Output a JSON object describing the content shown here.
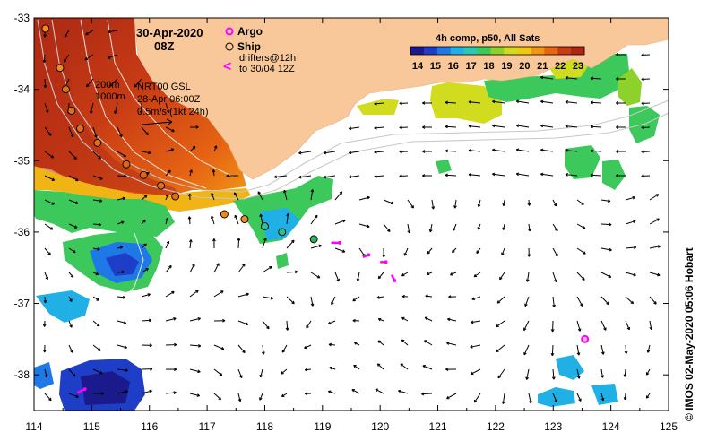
{
  "header": {
    "date": "30-Apr-2020",
    "time": "08Z",
    "legend_argo": "Argo",
    "legend_ship": "Ship",
    "drifters_line1": "drifters@12h",
    "drifters_line2": "to 30/04 12Z",
    "contour_200": "200m",
    "contour_1000": "1000m",
    "model_line1": "NRT00 GSL",
    "model_line2": "28-Apr 06:00Z",
    "scale_label": "0.5m/s (1kt 24h)"
  },
  "colorbar": {
    "title": "4h comp, p50, All Sats",
    "ticks": [
      "14",
      "15",
      "16",
      "17",
      "18",
      "19",
      "20",
      "21",
      "22",
      "23"
    ],
    "colors": [
      "#1a1a8c",
      "#1f3ec8",
      "#1e78e6",
      "#20b0e6",
      "#2ac8b4",
      "#3cc85a",
      "#8cd22a",
      "#d2dc1e",
      "#f0c814",
      "#f09614",
      "#e66414",
      "#c83c14",
      "#aa2814"
    ]
  },
  "axes": {
    "x_ticks": [
      "114",
      "115",
      "116",
      "117",
      "118",
      "119",
      "120",
      "121",
      "122",
      "123",
      "124",
      "125"
    ],
    "y_ticks": [
      "-33",
      "-34",
      "-35",
      "-36",
      "-37",
      "-38"
    ],
    "xlim": [
      114,
      125
    ],
    "ylim": [
      -38.5,
      -33
    ]
  },
  "credit": "© IMOS 02-May-2020 05:06 Hobart",
  "land_color": "#f9c89a",
  "colors": {
    "argo": "#ff00ff",
    "drifter": "#ff00ff",
    "ship_outline": "#000000"
  },
  "argo_floats": [
    [
      123.55,
      -37.5
    ]
  ],
  "ship_track": [
    [
      114.2,
      -33.15
    ],
    [
      114.45,
      -33.7
    ],
    [
      114.55,
      -34.0
    ],
    [
      114.65,
      -34.3
    ],
    [
      114.8,
      -34.55
    ],
    [
      115.1,
      -34.75
    ],
    [
      115.6,
      -35.05
    ],
    [
      115.9,
      -35.2
    ],
    [
      116.2,
      -35.35
    ],
    [
      116.45,
      -35.5
    ],
    [
      117.3,
      -35.75
    ],
    [
      117.65,
      -35.82
    ],
    [
      118.0,
      -35.92
    ],
    [
      118.3,
      -36.0
    ],
    [
      118.85,
      -36.1
    ]
  ],
  "ship_fill_colors": [
    "#f08a1e",
    "#f08a1e",
    "#e07018",
    "#e07018",
    "#e07018",
    "#e07018",
    "#d86818",
    "#d86818",
    "#e07018",
    "#e07018",
    "#f08a1e",
    "#f08a1e",
    "#30c0a0",
    "#30c080",
    "#30b060"
  ],
  "drifters": [
    [
      [
        119.15,
        -36.15
      ],
      [
        119.3,
        -36.15
      ]
    ],
    [
      [
        119.7,
        -36.35
      ],
      [
        119.8,
        -36.32
      ]
    ],
    [
      [
        120.0,
        -36.42
      ],
      [
        120.1,
        -36.42
      ]
    ],
    [
      [
        120.2,
        -36.6
      ],
      [
        120.25,
        -36.68
      ]
    ],
    [
      [
        114.75,
        -38.25
      ],
      [
        114.88,
        -38.2
      ]
    ]
  ]
}
